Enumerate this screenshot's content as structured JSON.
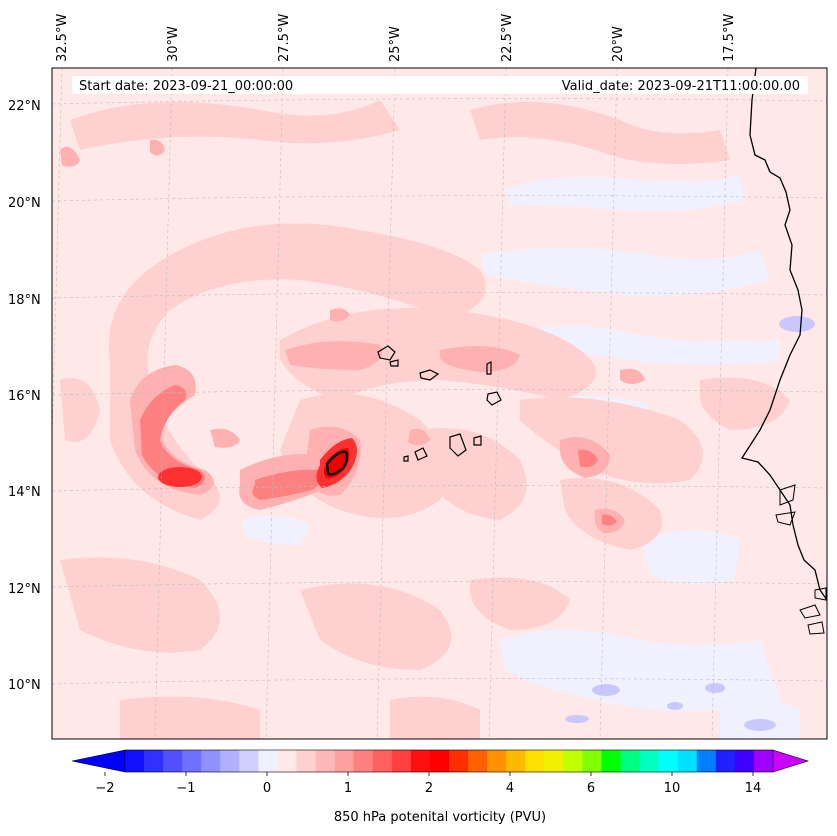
{
  "header": {
    "start_date": "Start date: 2023-09-21_00:00:00",
    "valid_date": "Valid_date: 2023-09-21T11:00:00.00"
  },
  "axes": {
    "lon_labels": [
      "32.5°W",
      "30°W",
      "27.5°W",
      "25°W",
      "22.5°W",
      "20°W",
      "17.5°W"
    ],
    "lat_labels": [
      "22°N",
      "20°N",
      "18°N",
      "16°N",
      "14°N",
      "12°N",
      "10°N"
    ]
  },
  "colorbar": {
    "label": "850 hPa potenital vorticity (PVU)",
    "ticks": [
      "−2",
      "−1",
      "0",
      "1",
      "2",
      "4",
      "6",
      "10",
      "14"
    ],
    "colors": [
      "#1010ff",
      "#3030ff",
      "#5050ff",
      "#7070ff",
      "#9090ff",
      "#b0b0ff",
      "#d0d0ff",
      "#f0f0ff",
      "#ffe8e8",
      "#ffd0d0",
      "#ffb8b8",
      "#ffa0a0",
      "#ff8080",
      "#ff6060",
      "#ff4040",
      "#ff1010",
      "#ff0000",
      "#ff3000",
      "#ff6000",
      "#ff9000",
      "#ffb800",
      "#ffe000",
      "#f0f000",
      "#c0ff00",
      "#80ff00",
      "#00ff00",
      "#00ff80",
      "#00ffc0",
      "#00ffff",
      "#00e0ff",
      "#0080ff",
      "#2020ff",
      "#4000ff",
      "#a000ff"
    ],
    "min_color": "#0000ff",
    "max_color": "#cc00ff"
  },
  "colors": {
    "background": "#ffe8e8",
    "weak": "#ffd0d0",
    "moderate": "#ffb0b0",
    "strong": "#ff8080",
    "intense": "#ff3030",
    "peak": "#ee0000",
    "negative": "#f0f0ff",
    "negative_strong": "#c8c8ff"
  }
}
